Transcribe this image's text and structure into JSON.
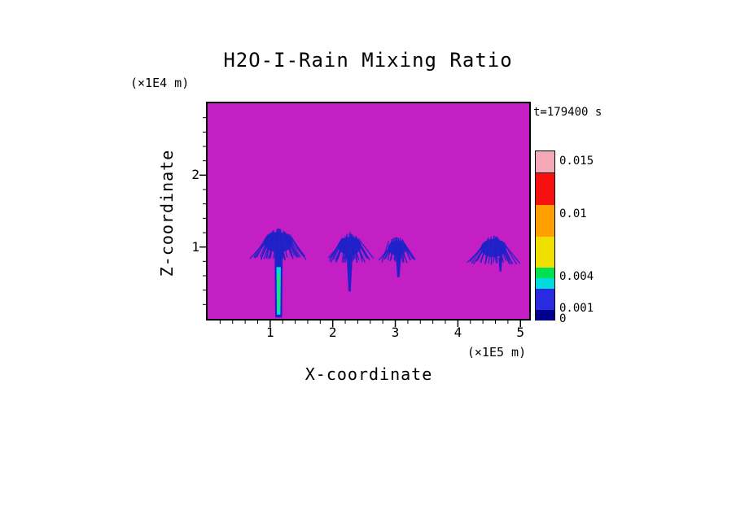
{
  "figure": {
    "background": "#FFFFFF"
  },
  "chart_data": {
    "type": "heatmap",
    "title": "H2O-I-Rain Mixing Ratio",
    "xlabel": "X-coordinate",
    "ylabel": "Z-coordinate",
    "x_units_label": "(×1E5 m)",
    "y_units_label": "(×1E4 m)",
    "time_label": "t=179400 s",
    "xlim": [
      0,
      5.14
    ],
    "ylim": [
      0,
      3.0
    ],
    "x_major_ticks": [
      1,
      2,
      3,
      4,
      5
    ],
    "y_major_ticks": [
      1,
      2
    ],
    "minor_tick_step": 0.2,
    "grid": false,
    "background_fill": {
      "value": 0,
      "color": "#C41FC4"
    },
    "field_color": "#1E22C8",
    "colorbar": {
      "position": "right",
      "min": 0,
      "max": 0.016,
      "levels": [
        0,
        0.001,
        0.003,
        0.004,
        0.005,
        0.008,
        0.011,
        0.014,
        0.016
      ],
      "colors": [
        "#00008C",
        "#2A2AE0",
        "#00DCDC",
        "#00E050",
        "#F0E000",
        "#FFA000",
        "#F81010",
        "#F4A8B8"
      ],
      "labels": [
        {
          "value": 0,
          "text": "0"
        },
        {
          "value": 0.001,
          "text": "0.001"
        },
        {
          "value": 0.004,
          "text": "0.004"
        },
        {
          "value": 0.01,
          "text": "0.01"
        },
        {
          "value": 0.015,
          "text": "0.015"
        }
      ]
    },
    "plumes": [
      {
        "cx": 1.13,
        "spread": 0.42,
        "top": 1.25,
        "base": 0.88,
        "streaks": 36,
        "color": "#1E22C8",
        "columns": [
          {
            "x": 1.135,
            "w": 0.13,
            "top": 1.02,
            "bottom": 0.02,
            "taper": 0.85,
            "color": "#1E22C8"
          },
          {
            "x": 1.135,
            "w": 0.07,
            "top": 0.72,
            "bottom": 0.06,
            "taper": 0.8,
            "color": "#00DCDC"
          },
          {
            "x": 1.135,
            "w": 0.03,
            "top": 0.62,
            "bottom": 0.1,
            "taper": 0.8,
            "color": "#3CE03C"
          }
        ]
      },
      {
        "cx": 2.27,
        "spread": 0.34,
        "top": 1.18,
        "base": 0.85,
        "streaks": 30,
        "color": "#1E22C8",
        "columns": [
          {
            "x": 2.27,
            "w": 0.1,
            "top": 0.92,
            "bottom": 0.38,
            "taper": 0.35,
            "color": "#1E22C8"
          }
        ]
      },
      {
        "cx": 3.03,
        "spread": 0.27,
        "top": 1.12,
        "base": 0.85,
        "streaks": 24,
        "color": "#1E22C8",
        "columns": [
          {
            "x": 3.05,
            "w": 0.09,
            "top": 0.9,
            "bottom": 0.58,
            "taper": 0.4,
            "color": "#1E22C8"
          }
        ]
      },
      {
        "cx": 4.57,
        "spread": 0.37,
        "top": 1.15,
        "base": 0.82,
        "streaks": 30,
        "color": "#1E22C8",
        "columns": [
          {
            "x": 4.68,
            "w": 0.06,
            "top": 0.85,
            "bottom": 0.66,
            "taper": 0.5,
            "color": "#1E22C8"
          }
        ]
      }
    ]
  }
}
